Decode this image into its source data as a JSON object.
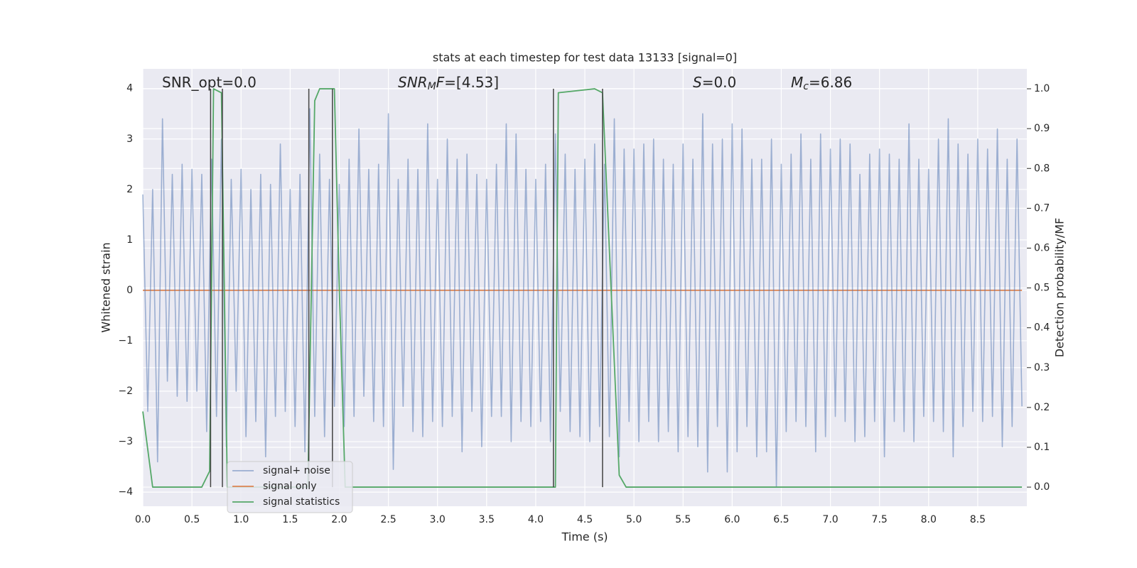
{
  "chart_data": {
    "type": "line",
    "title": "stats at each timestep for test data 13133 [signal=0]",
    "x_label": "Time (s)",
    "y_label": "Whitened strain",
    "y2_label": "Detection probability/MF",
    "xlim": [
      0,
      9.0
    ],
    "ylim": [
      -4.28,
      4.39
    ],
    "y2lim": [
      -0.048,
      1.05
    ],
    "xticks": [
      {
        "value": 0,
        "label": "0.0"
      },
      0.5,
      {
        "value": 1,
        "label": "1.0"
      },
      1.5,
      {
        "value": 2,
        "label": "2.0"
      },
      2.5,
      {
        "value": 3,
        "label": "3.0"
      },
      3.5,
      {
        "value": 4,
        "label": "4.0"
      },
      4.5,
      {
        "value": 5,
        "label": "5.0"
      },
      5.5,
      {
        "value": 6,
        "label": "6.0"
      },
      6.5,
      {
        "value": 7,
        "label": "7.0"
      },
      7.5,
      {
        "value": 8,
        "label": "8.0"
      },
      8.5
    ],
    "yticks": [
      {
        "value": -4,
        "label": "−4"
      },
      {
        "value": -3,
        "label": "−3"
      },
      {
        "value": -2,
        "label": "−2"
      },
      {
        "value": -1,
        "label": "−1"
      },
      0,
      1,
      2,
      3,
      4
    ],
    "y2ticks": [
      {
        "value": 0,
        "label": "0.0"
      },
      0.1,
      0.2,
      0.3,
      0.4,
      0.5,
      0.6,
      0.7,
      0.8,
      0.9,
      {
        "value": 1,
        "label": "1.0"
      }
    ],
    "grid": true,
    "legend": "best",
    "series": [
      {
        "name": "signal+ noise",
        "color": "#4c72b0",
        "x": [
          0,
          0.05,
          0.1,
          0.15,
          0.2,
          0.25,
          0.3,
          0.35,
          0.4,
          0.45,
          0.5,
          0.55,
          0.6,
          0.65,
          0.7,
          0.75,
          0.8,
          0.85,
          0.9,
          0.95,
          1,
          1.05,
          1.1,
          1.15,
          1.2,
          1.25,
          1.3,
          1.35,
          1.4,
          1.45,
          1.5,
          1.55,
          1.6,
          1.65,
          1.7,
          1.75,
          1.8,
          1.85,
          1.9,
          1.95,
          2,
          2.05,
          2.1,
          2.15,
          2.2,
          2.25,
          2.3,
          2.35,
          2.4,
          2.45,
          2.5,
          2.55,
          2.6,
          2.65,
          2.7,
          2.75,
          2.8,
          2.85,
          2.9,
          2.95,
          3,
          3.05,
          3.1,
          3.15,
          3.2,
          3.25,
          3.3,
          3.35,
          3.4,
          3.45,
          3.5,
          3.55,
          3.6,
          3.65,
          3.7,
          3.75,
          3.8,
          3.85,
          3.9,
          3.95,
          4,
          4.05,
          4.1,
          4.15,
          4.2,
          4.25,
          4.3,
          4.35,
          4.4,
          4.45,
          4.5,
          4.55,
          4.6,
          4.65,
          4.7,
          4.75,
          4.8,
          4.85,
          4.9,
          4.95,
          5,
          5.05,
          5.1,
          5.15,
          5.2,
          5.25,
          5.3,
          5.35,
          5.4,
          5.45,
          5.5,
          5.55,
          5.6,
          5.65,
          5.7,
          5.75,
          5.8,
          5.85,
          5.9,
          5.95,
          6,
          6.05,
          6.1,
          6.15,
          6.2,
          6.25,
          6.3,
          6.35,
          6.4,
          6.45,
          6.5,
          6.55,
          6.6,
          6.65,
          6.7,
          6.75,
          6.8,
          6.85,
          6.9,
          6.95,
          7,
          7.05,
          7.1,
          7.15,
          7.2,
          7.25,
          7.3,
          7.35,
          7.4,
          7.45,
          7.5,
          7.55,
          7.6,
          7.65,
          7.7,
          7.75,
          7.8,
          7.85,
          7.9,
          7.95,
          8,
          8.05,
          8.1,
          8.15,
          8.2,
          8.25,
          8.3,
          8.35,
          8.4,
          8.45,
          8.5,
          8.55,
          8.6,
          8.65,
          8.7,
          8.75,
          8.8,
          8.85,
          8.9,
          8.95
        ],
        "values": [
          1.9,
          -2.4,
          2.0,
          -3.4,
          3.4,
          -1.8,
          2.3,
          -2.1,
          2.5,
          -2.2,
          2.4,
          -2.0,
          2.3,
          -2.8,
          2.6,
          -2.5,
          3.0,
          -3.1,
          2.2,
          -2.0,
          2.4,
          -2.9,
          2.0,
          -2.6,
          2.3,
          -3.3,
          2.1,
          -2.5,
          2.9,
          -2.4,
          2.0,
          -2.7,
          2.3,
          -3.2,
          3.6,
          -2.5,
          2.7,
          -2.9,
          2.2,
          -2.3,
          2.1,
          -2.7,
          2.6,
          -2.5,
          3.2,
          -2.1,
          2.4,
          -2.6,
          2.5,
          -2.7,
          3.5,
          -3.55,
          2.2,
          -2.3,
          2.6,
          -2.8,
          2.4,
          -2.9,
          3.3,
          -2.6,
          2.2,
          -2.7,
          3.0,
          -2.5,
          2.6,
          -3.2,
          2.7,
          -2.4,
          2.3,
          -3.1,
          2.2,
          -2.5,
          2.5,
          -2.5,
          3.3,
          -3.0,
          3.1,
          -2.6,
          2.4,
          -2.7,
          2.2,
          -2.6,
          2.5,
          -3.0,
          3.1,
          -2.4,
          2.7,
          -2.8,
          2.4,
          -2.9,
          2.6,
          -3.0,
          2.9,
          -2.7,
          2.5,
          -2.9,
          3.4,
          -3.3,
          2.8,
          -2.6,
          2.8,
          -3.0,
          2.9,
          -2.6,
          3.0,
          -3.0,
          2.6,
          -2.8,
          2.5,
          -3.2,
          2.9,
          -2.9,
          2.6,
          -3.1,
          3.5,
          -3.6,
          2.9,
          -2.7,
          3.0,
          -3.6,
          3.3,
          -3.2,
          3.2,
          -2.7,
          2.6,
          -3.3,
          2.6,
          -3.2,
          3.0,
          -3.9,
          2.5,
          -2.8,
          2.7,
          -2.6,
          3.1,
          -2.7,
          2.6,
          -3.2,
          3.1,
          -2.9,
          2.8,
          -2.5,
          3.0,
          -2.6,
          2.9,
          -3.0,
          2.3,
          -2.9,
          2.7,
          -2.6,
          2.8,
          -3.3,
          2.7,
          -2.6,
          2.6,
          -2.8,
          3.3,
          -3.0,
          2.6,
          -2.5,
          2.4,
          -2.6,
          3.0,
          -2.8,
          3.4,
          -3.3,
          2.9,
          -2.7,
          2.7,
          -2.4,
          3.0,
          -2.6,
          2.8,
          -2.5,
          3.2,
          -3.1,
          2.6,
          -2.7,
          3.0,
          -2.3
        ]
      },
      {
        "name": "signal only",
        "color": "#dd8452",
        "x": [
          0,
          8.95
        ],
        "values": [
          0,
          0
        ]
      },
      {
        "name": "signal statistics",
        "color": "#55a868",
        "axis": "y2",
        "x": [
          0,
          0.1,
          0.6,
          0.68,
          0.72,
          0.8,
          0.86,
          1.68,
          1.75,
          1.8,
          1.95,
          2.0,
          2.06,
          4.2,
          4.23,
          4.6,
          4.68,
          4.85,
          4.92,
          8.95
        ],
        "values": [
          0.19,
          0.0,
          0.0,
          0.04,
          1.0,
          0.99,
          0.0,
          0.0,
          0.97,
          1.0,
          1.0,
          0.5,
          0.0,
          0.0,
          0.99,
          1.0,
          0.99,
          0.03,
          0.0,
          0.0
        ]
      }
    ],
    "vlines": {
      "x": [
        0.69,
        0.81,
        1.69,
        1.93,
        4.18,
        4.68
      ],
      "y2range": [
        0,
        1
      ],
      "color": "#444444"
    },
    "annotations": [
      {
        "parts": [
          {
            "text": "SNR_opt=0.0"
          }
        ]
      },
      {
        "parts": [
          {
            "text": "SNR",
            "italic": true
          },
          {
            "text": "M",
            "italic": true,
            "sub": true
          },
          {
            "text": "F",
            "italic": true
          },
          {
            "text": "=[4.53]"
          }
        ]
      },
      {
        "parts": [
          {
            "text": "S",
            "italic": true
          },
          {
            "text": "=0.0"
          }
        ]
      },
      {
        "parts": [
          {
            "text": "M",
            "italic": true
          },
          {
            "text": "c",
            "italic": true,
            "sub": true
          },
          {
            "text": "=6.86"
          }
        ]
      }
    ]
  }
}
